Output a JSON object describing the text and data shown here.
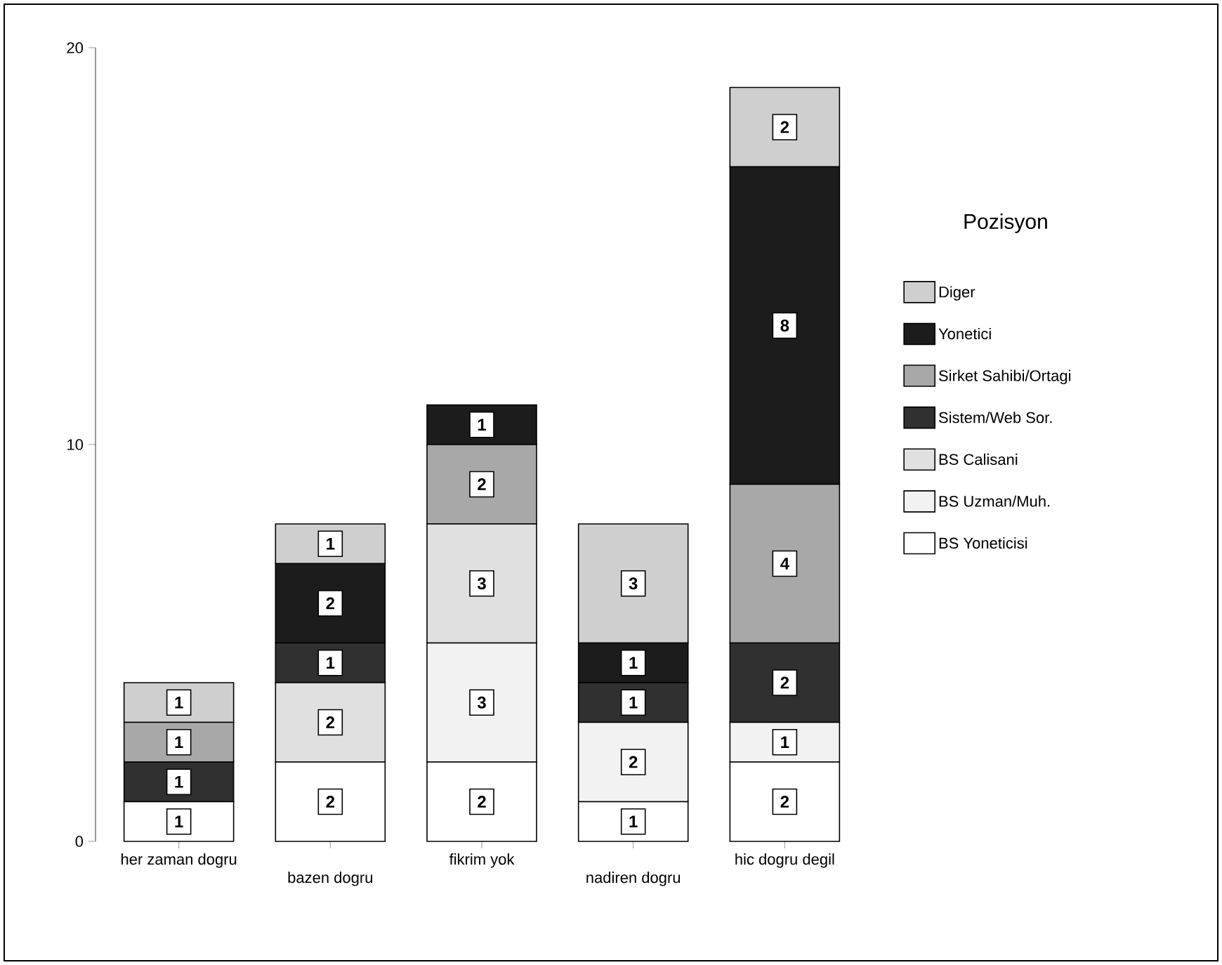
{
  "chart_data": {
    "type": "bar",
    "stacked": true,
    "legend_title": "Pozisyon",
    "legend": "right",
    "categories": [
      "her zaman dogru",
      "bazen dogru",
      "fikrim yok",
      "nadiren dogru",
      "hic dogru degil"
    ],
    "ylim": [
      0,
      20
    ],
    "yticks": [
      0,
      10,
      20
    ],
    "series": [
      {
        "name": "BS Yoneticisi",
        "color": "#ffffff",
        "values": [
          1,
          2,
          2,
          1,
          2
        ],
        "value_labels": [
          "1",
          "2",
          "2",
          "1",
          "2"
        ]
      },
      {
        "name": "BS Uzman/Muh.",
        "color": "#f2f2f2",
        "values": [
          0,
          0,
          3,
          2,
          1
        ],
        "value_labels": [
          null,
          null,
          "3",
          "2",
          "1"
        ]
      },
      {
        "name": "BS Calisani",
        "color": "#e0e0e0",
        "values": [
          0,
          2,
          3,
          0,
          0
        ],
        "value_labels": [
          null,
          "2",
          "3",
          null,
          null
        ]
      },
      {
        "name": "Sistem/Web Sor.",
        "color": "#303030",
        "values": [
          1,
          1,
          0,
          1,
          2
        ],
        "value_labels": [
          "1",
          "1",
          null,
          "1",
          "2"
        ]
      },
      {
        "name": "Sirket Sahibi/Ortagi",
        "color": "#a8a8a8",
        "values": [
          1,
          0,
          2,
          0,
          4
        ],
        "value_labels": [
          "1",
          null,
          "2",
          null,
          "4"
        ]
      },
      {
        "name": "Yonetici",
        "color": "#1c1c1c",
        "values": [
          0,
          2,
          1,
          1,
          8
        ],
        "value_labels": [
          null,
          "2",
          "1",
          "1",
          "8"
        ]
      },
      {
        "name": "Diger",
        "color": "#cfcfcf",
        "values": [
          1,
          1,
          0,
          3,
          2
        ],
        "value_labels": [
          "1",
          "1",
          null,
          "3",
          "2"
        ]
      }
    ]
  }
}
